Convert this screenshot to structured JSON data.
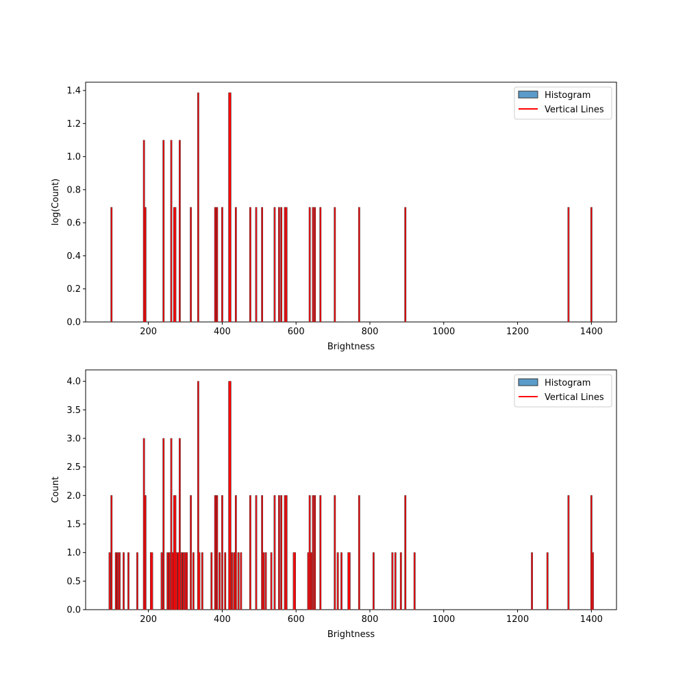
{
  "chart_data": [
    {
      "type": "bar",
      "xlabel": "Brightness",
      "ylabel": "log(Count)",
      "xlim": [
        30,
        1468
      ],
      "ylim": [
        0,
        1.45
      ],
      "xticks": [
        "200",
        "400",
        "600",
        "800",
        "1000",
        "1200",
        "1400"
      ],
      "yticks": [
        "0.0",
        "0.2",
        "0.4",
        "0.6",
        "0.8",
        "1.0",
        "1.2",
        "1.4"
      ],
      "legend": {
        "placement": "top-right",
        "entries": [
          "Histogram",
          "Vertical Lines"
        ]
      },
      "grid": false,
      "colors": {
        "histogram": "#5b9bc9",
        "histogram_edge": "#333333",
        "lines": "#ff0000"
      },
      "series": [
        {
          "name": "Histogram",
          "x": [
            100,
            188,
            192,
            241,
            262,
            270,
            273,
            285,
            315,
            335,
            381,
            386,
            400,
            419,
            422,
            437,
            476,
            492,
            508,
            542,
            554,
            560,
            570,
            574,
            637,
            646,
            651,
            666,
            705,
            771,
            896,
            1338,
            1400
          ],
          "values": [
            0.693,
            1.099,
            0.693,
            1.099,
            1.099,
            0.693,
            0.693,
            1.099,
            0.693,
            1.386,
            0.693,
            0.693,
            0.693,
            1.386,
            1.386,
            0.693,
            0.693,
            0.693,
            0.693,
            0.693,
            0.693,
            0.693,
            0.693,
            0.693,
            0.693,
            0.693,
            0.693,
            0.693,
            0.693,
            0.693,
            0.693,
            0.693,
            0.693
          ]
        }
      ]
    },
    {
      "type": "bar",
      "xlabel": "Brightness",
      "ylabel": "Count",
      "xlim": [
        30,
        1468
      ],
      "ylim": [
        0,
        4.2
      ],
      "xticks": [
        "200",
        "400",
        "600",
        "800",
        "1000",
        "1200",
        "1400"
      ],
      "yticks": [
        "0.0",
        "0.5",
        "1.0",
        "1.5",
        "2.0",
        "2.5",
        "3.0",
        "3.5",
        "4.0"
      ],
      "legend": {
        "placement": "top-right",
        "entries": [
          "Histogram",
          "Vertical Lines"
        ]
      },
      "grid": false,
      "colors": {
        "histogram": "#5b9bc9",
        "histogram_edge": "#333333",
        "lines": "#ff0000"
      },
      "series": [
        {
          "name": "Histogram",
          "x": [
            95,
            100,
            112,
            117,
            122,
            133,
            146,
            170,
            188,
            192,
            207,
            210,
            236,
            241,
            252,
            257,
            262,
            266,
            270,
            273,
            277,
            282,
            285,
            290,
            295,
            300,
            304,
            315,
            322,
            335,
            338,
            346,
            371,
            381,
            386,
            393,
            400,
            408,
            419,
            422,
            427,
            433,
            437,
            444,
            451,
            476,
            492,
            508,
            512,
            518,
            533,
            542,
            554,
            560,
            570,
            574,
            594,
            597,
            633,
            637,
            641,
            646,
            651,
            666,
            705,
            713,
            723,
            742,
            745,
            771,
            810,
            861,
            869,
            884,
            896,
            921,
            1239,
            1281,
            1338,
            1400,
            1404
          ],
          "values": [
            1,
            2,
            1,
            1,
            1,
            1,
            1,
            1,
            3,
            2,
            1,
            1,
            1,
            3,
            1,
            1,
            3,
            1,
            2,
            2,
            1,
            1,
            3,
            1,
            1,
            1,
            1,
            2,
            1,
            4,
            1,
            1,
            1,
            2,
            2,
            1,
            2,
            1,
            4,
            4,
            1,
            1,
            2,
            1,
            1,
            2,
            2,
            2,
            1,
            1,
            1,
            2,
            2,
            2,
            2,
            2,
            1,
            1,
            1,
            2,
            1,
            2,
            2,
            2,
            2,
            1,
            1,
            1,
            1,
            2,
            1,
            1,
            1,
            1,
            2,
            1,
            1,
            1,
            2,
            2,
            1
          ]
        }
      ]
    }
  ]
}
